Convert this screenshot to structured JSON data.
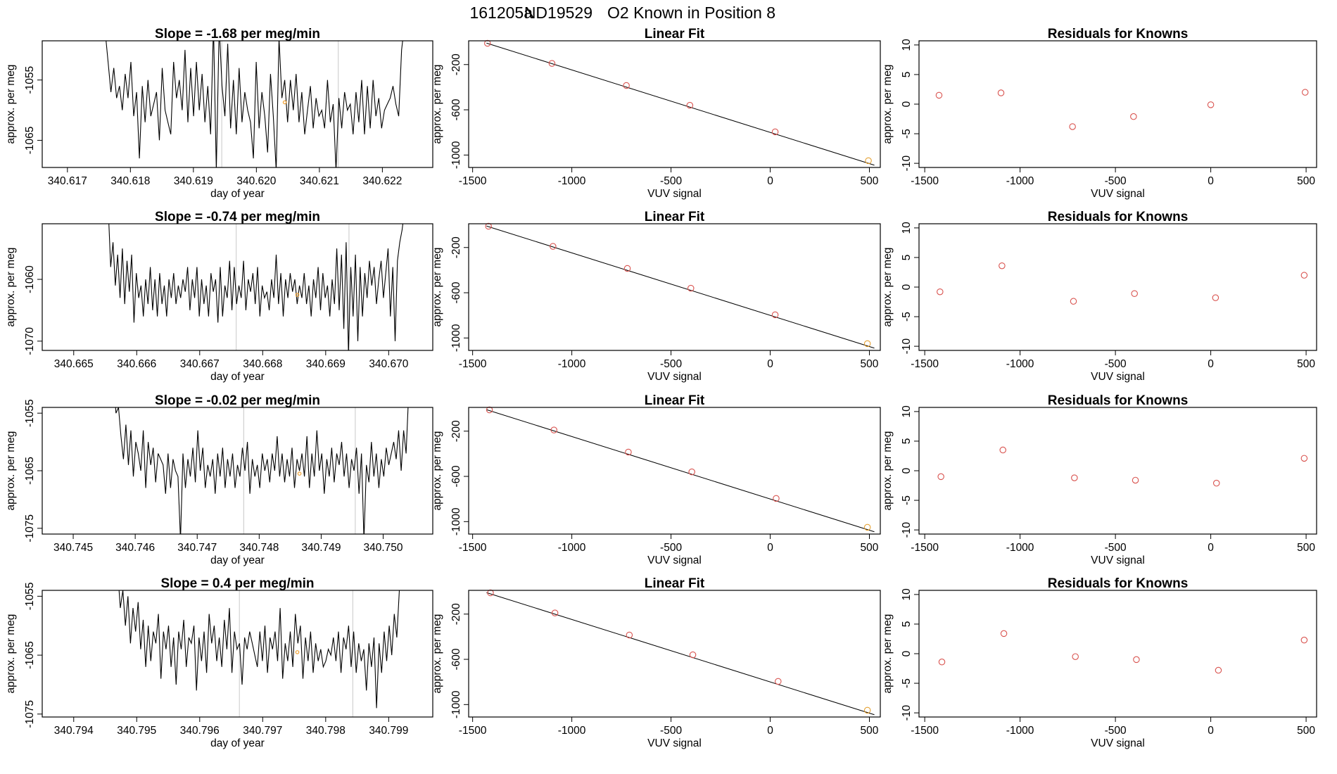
{
  "figure": {
    "title_parts": [
      "161205a",
      "ND19529",
      "O2 Known in Position  8"
    ]
  },
  "chart_data": [
    {
      "type": "line",
      "title": "Slope =  -1.68  per meg/min",
      "xlabel": "day of year",
      "ylabel": "approx. per meg",
      "xlim": [
        340.6166,
        340.6228
      ],
      "ylim": [
        -1069.5,
        -1048.5
      ],
      "xticks": [
        "340.617",
        "340.618",
        "340.619",
        "340.620",
        "340.621",
        "340.622"
      ],
      "yticks": [
        "-1055",
        "-1065"
      ],
      "vlines": [
        340.61945,
        340.6213
      ],
      "known_marker": [
        340.62045,
        -1058.7
      ],
      "series": [
        {
          "name": "trace",
          "x_start": 340.6176,
          "x_end": 340.62235,
          "values": [
            -1047,
            -1052,
            -1057,
            -1053,
            -1058,
            -1056,
            -1060,
            -1054,
            -1058,
            -1052,
            -1061,
            -1057,
            -1068,
            -1056,
            -1062,
            -1055,
            -1061,
            -1059,
            -1057,
            -1065,
            -1053,
            -1060,
            -1062,
            -1064,
            -1052,
            -1058,
            -1055,
            -1060,
            -1050,
            -1062,
            -1053,
            -1061,
            -1052,
            -1060,
            -1054,
            -1062,
            -1056,
            -1064,
            -1046,
            -1070,
            -1046,
            -1056,
            -1061,
            -1049,
            -1063,
            -1055,
            -1064,
            -1053,
            -1062,
            -1057,
            -1060,
            -1062,
            -1068,
            -1052,
            -1063,
            -1057,
            -1061,
            -1067,
            -1054,
            -1061,
            -1070,
            -1048,
            -1058,
            -1055,
            -1062,
            -1055,
            -1060,
            -1054,
            -1062,
            -1057,
            -1064,
            -1060,
            -1056,
            -1063,
            -1058,
            -1061,
            -1060,
            -1063,
            -1055,
            -1062,
            -1059,
            -1070,
            -1058,
            -1063,
            -1057,
            -1060,
            -1059,
            -1064,
            -1057,
            -1062,
            -1055,
            -1064,
            -1056,
            -1063,
            -1055,
            -1061,
            -1058,
            -1063,
            -1060,
            -1059,
            -1058,
            -1056,
            -1059,
            -1061,
            -1050,
            -1046
          ]
        }
      ]
    },
    {
      "type": "scatter",
      "title": "Linear Fit",
      "xlabel": "VUV signal",
      "ylabel": "approx. per meg",
      "xlim": [
        -1520,
        555
      ],
      "ylim": [
        -1110,
        10
      ],
      "xticks": [
        "-1500",
        "-1000",
        "-500",
        "0",
        "500"
      ],
      "yticks": [
        "-200",
        "-600",
        "-1000"
      ],
      "fit_line": [
        [
          -1430,
          -10
        ],
        [
          525,
          -1090
        ]
      ],
      "x": [
        -1425,
        -1100,
        -725,
        -405,
        25,
        495
      ],
      "y": [
        -12,
        -190,
        -385,
        -560,
        -795,
        -1050
      ],
      "highlight_index": 5
    },
    {
      "type": "scatter",
      "title": "Residuals for Knowns",
      "xlabel": "VUV signal",
      "ylabel": "approx. per meg",
      "xlim": [
        -1530,
        555
      ],
      "ylim": [
        -10.7,
        10.7
      ],
      "xticks": [
        "-1500",
        "-1000",
        "-500",
        "0",
        "500"
      ],
      "yticks": [
        "-10",
        "-5",
        "0",
        "5",
        "10"
      ],
      "x": [
        -1425,
        -1100,
        -725,
        -405,
        0,
        495
      ],
      "y": [
        1.5,
        1.9,
        -3.8,
        -2.1,
        -0.1,
        2.0
      ]
    },
    {
      "type": "line",
      "title": "Slope =  -0.74  per meg/min",
      "xlabel": "day of year",
      "ylabel": "approx. per meg",
      "xlim": [
        340.6645,
        340.6707
      ],
      "ylim": [
        -1071.5,
        -1051
      ],
      "xticks": [
        "340.665",
        "340.666",
        "340.667",
        "340.668",
        "340.669",
        "340.670"
      ],
      "yticks": [
        "-1060",
        "-1070"
      ],
      "vlines": [
        340.66758,
        340.66937
      ],
      "known_marker": [
        340.66855,
        -1062.5
      ],
      "series": [
        {
          "name": "trace",
          "x_start": 340.66555,
          "x_end": 340.67025,
          "values": [
            -1049,
            -1058,
            -1054,
            -1061,
            -1056,
            -1063,
            -1055,
            -1064,
            -1057,
            -1062,
            -1056,
            -1067,
            -1059,
            -1063,
            -1061,
            -1066,
            -1060,
            -1064,
            -1058,
            -1065,
            -1060,
            -1066,
            -1059,
            -1064,
            -1061,
            -1066,
            -1060,
            -1063,
            -1059,
            -1064,
            -1061,
            -1063,
            -1060,
            -1062,
            -1058,
            -1065,
            -1060,
            -1063,
            -1058,
            -1066,
            -1060,
            -1064,
            -1061,
            -1066,
            -1059,
            -1062,
            -1060,
            -1067,
            -1058,
            -1066,
            -1061,
            -1063,
            -1057,
            -1065,
            -1058,
            -1064,
            -1061,
            -1063,
            -1057,
            -1065,
            -1060,
            -1062,
            -1059,
            -1064,
            -1058,
            -1066,
            -1061,
            -1063,
            -1062,
            -1065,
            -1060,
            -1063,
            -1056,
            -1064,
            -1059,
            -1066,
            -1060,
            -1063,
            -1059,
            -1062,
            -1060,
            -1064,
            -1061,
            -1063,
            -1059,
            -1064,
            -1061,
            -1066,
            -1060,
            -1063,
            -1058,
            -1065,
            -1059,
            -1063,
            -1061,
            -1066,
            -1060,
            -1064,
            -1055,
            -1065,
            -1056,
            -1068,
            -1054,
            -1072,
            -1058,
            -1066,
            -1056,
            -1070,
            -1058,
            -1066,
            -1059,
            -1063,
            -1057,
            -1061,
            -1058,
            -1064,
            -1060,
            -1057,
            -1063,
            -1059,
            -1055,
            -1066,
            -1058,
            -1070,
            -1057,
            -1054,
            -1052,
            -1049
          ]
        }
      ]
    },
    {
      "type": "scatter",
      "title": "Linear Fit",
      "xlabel": "VUV signal",
      "ylabel": "approx. per meg",
      "xlim": [
        -1520,
        555
      ],
      "ylim": [
        -1110,
        10
      ],
      "xticks": [
        "-1500",
        "-1000",
        "-500",
        "0",
        "500"
      ],
      "yticks": [
        "-200",
        "-600",
        "-1000"
      ],
      "fit_line": [
        [
          -1430,
          -10
        ],
        [
          525,
          -1090
        ]
      ],
      "x": [
        -1420,
        -1095,
        -720,
        -400,
        25,
        490
      ],
      "y": [
        -12,
        -190,
        -385,
        -560,
        -795,
        -1050
      ],
      "highlight_index": 5
    },
    {
      "type": "scatter",
      "title": "Residuals for Knowns",
      "xlabel": "VUV signal",
      "ylabel": "approx. per meg",
      "xlim": [
        -1530,
        555
      ],
      "ylim": [
        -10.7,
        10.7
      ],
      "xticks": [
        "-1500",
        "-1000",
        "-500",
        "0",
        "500"
      ],
      "yticks": [
        "-10",
        "-5",
        "0",
        "5",
        "10"
      ],
      "x": [
        -1420,
        -1095,
        -720,
        -400,
        25,
        490
      ],
      "y": [
        -0.8,
        3.6,
        -2.4,
        -1.1,
        -1.8,
        2.0
      ]
    },
    {
      "type": "line",
      "title": "Slope =  -0.02  per meg/min",
      "xlabel": "day of year",
      "ylabel": "approx. per meg",
      "xlim": [
        340.7445,
        340.7508
      ],
      "ylim": [
        -1076,
        -1054
      ],
      "xticks": [
        "340.745",
        "340.746",
        "340.747",
        "340.748",
        "340.749",
        "340.750"
      ],
      "yticks": [
        "-1055",
        "-1065",
        "-1075"
      ],
      "vlines": [
        340.74775,
        340.74955
      ],
      "known_marker": [
        340.74865,
        -1065.5
      ],
      "series": [
        {
          "name": "trace",
          "x_start": 340.74565,
          "x_end": 340.75045,
          "values": [
            -1049,
            -1055,
            -1054,
            -1059,
            -1063,
            -1057,
            -1064,
            -1058,
            -1066,
            -1060,
            -1062,
            -1065,
            -1058,
            -1068,
            -1060,
            -1064,
            -1061,
            -1067,
            -1062,
            -1063,
            -1064,
            -1069,
            -1062,
            -1068,
            -1063,
            -1065,
            -1066,
            -1077,
            -1062,
            -1068,
            -1063,
            -1066,
            -1061,
            -1067,
            -1058,
            -1065,
            -1061,
            -1068,
            -1064,
            -1066,
            -1063,
            -1069,
            -1062,
            -1066,
            -1061,
            -1068,
            -1063,
            -1066,
            -1062,
            -1068,
            -1064,
            -1066,
            -1061,
            -1065,
            -1060,
            -1069,
            -1063,
            -1066,
            -1064,
            -1068,
            -1062,
            -1065,
            -1063,
            -1067,
            -1062,
            -1065,
            -1059,
            -1066,
            -1062,
            -1067,
            -1063,
            -1066,
            -1061,
            -1068,
            -1063,
            -1065,
            -1062,
            -1066,
            -1059,
            -1068,
            -1062,
            -1066,
            -1058,
            -1065,
            -1062,
            -1069,
            -1063,
            -1066,
            -1061,
            -1067,
            -1062,
            -1064,
            -1060,
            -1066,
            -1062,
            -1068,
            -1063,
            -1065,
            -1061,
            -1069,
            -1062,
            -1077,
            -1064,
            -1067,
            -1060,
            -1066,
            -1062,
            -1068,
            -1063,
            -1066,
            -1061,
            -1064,
            -1062,
            -1060,
            -1063,
            -1058,
            -1065,
            -1058,
            -1062,
            -1052,
            -1049
          ]
        }
      ]
    },
    {
      "type": "scatter",
      "title": "Linear Fit",
      "xlabel": "VUV signal",
      "ylabel": "approx. per meg",
      "xlim": [
        -1520,
        555
      ],
      "ylim": [
        -1110,
        10
      ],
      "xticks": [
        "-1500",
        "-1000",
        "-500",
        "0",
        "500"
      ],
      "yticks": [
        "-200",
        "-600",
        "-1000"
      ],
      "fit_line": [
        [
          -1430,
          -10
        ],
        [
          525,
          -1090
        ]
      ],
      "x": [
        -1415,
        -1090,
        -715,
        -395,
        30,
        490
      ],
      "y": [
        -12,
        -190,
        -385,
        -560,
        -795,
        -1050
      ],
      "highlight_index": 5
    },
    {
      "type": "scatter",
      "title": "Residuals for Knowns",
      "xlabel": "VUV signal",
      "ylabel": "approx. per meg",
      "xlim": [
        -1530,
        555
      ],
      "ylim": [
        -10.7,
        10.7
      ],
      "xticks": [
        "-1500",
        "-1000",
        "-500",
        "0",
        "500"
      ],
      "yticks": [
        "-10",
        "-5",
        "0",
        "5",
        "10"
      ],
      "x": [
        -1415,
        -1090,
        -715,
        -395,
        30,
        490
      ],
      "y": [
        -1.0,
        3.5,
        -1.2,
        -1.6,
        -2.1,
        2.1
      ]
    },
    {
      "type": "line",
      "title": "Slope =  0.4  per meg/min",
      "xlabel": "day of year",
      "ylabel": "approx. per meg",
      "xlim": [
        340.7935,
        340.7997
      ],
      "ylim": [
        -1075.5,
        -1054
      ],
      "xticks": [
        "340.794",
        "340.795",
        "340.796",
        "340.797",
        "340.798",
        "340.799"
      ],
      "yticks": [
        "-1055",
        "-1065",
        "-1075"
      ],
      "vlines": [
        340.79663,
        340.79843
      ],
      "known_marker": [
        340.79755,
        -1064.5
      ],
      "series": [
        {
          "name": "trace",
          "x_start": 340.7947,
          "x_end": 340.79925,
          "values": [
            -1051,
            -1057,
            -1054,
            -1060,
            -1055,
            -1063,
            -1057,
            -1061,
            -1056,
            -1064,
            -1059,
            -1067,
            -1060,
            -1066,
            -1061,
            -1063,
            -1058,
            -1069,
            -1061,
            -1064,
            -1060,
            -1067,
            -1062,
            -1070,
            -1061,
            -1064,
            -1059,
            -1067,
            -1062,
            -1063,
            -1060,
            -1071,
            -1062,
            -1066,
            -1061,
            -1068,
            -1058,
            -1063,
            -1060,
            -1066,
            -1062,
            -1067,
            -1059,
            -1064,
            -1057,
            -1068,
            -1061,
            -1064,
            -1063,
            -1070,
            -1062,
            -1064,
            -1061,
            -1063,
            -1065,
            -1067,
            -1061,
            -1066,
            -1060,
            -1068,
            -1062,
            -1064,
            -1061,
            -1066,
            -1057,
            -1069,
            -1063,
            -1066,
            -1061,
            -1067,
            -1058,
            -1063,
            -1060,
            -1069,
            -1062,
            -1066,
            -1061,
            -1068,
            -1063,
            -1066,
            -1064,
            -1067,
            -1066,
            -1064,
            -1065,
            -1062,
            -1066,
            -1061,
            -1068,
            -1062,
            -1064,
            -1060,
            -1067,
            -1061,
            -1068,
            -1063,
            -1066,
            -1064,
            -1071,
            -1063,
            -1067,
            -1062,
            -1074,
            -1063,
            -1068,
            -1061,
            -1066,
            -1060,
            -1065,
            -1058,
            -1062,
            -1054,
            -1052,
            -1049
          ]
        }
      ]
    },
    {
      "type": "scatter",
      "title": "Linear Fit",
      "xlabel": "VUV signal",
      "ylabel": "approx. per meg",
      "xlim": [
        -1520,
        555
      ],
      "ylim": [
        -1110,
        10
      ],
      "xticks": [
        "-1500",
        "-1000",
        "-500",
        "0",
        "500"
      ],
      "yticks": [
        "-200",
        "-600",
        "-1000"
      ],
      "fit_line": [
        [
          -1430,
          -10
        ],
        [
          525,
          -1090
        ]
      ],
      "x": [
        -1410,
        -1085,
        -710,
        -390,
        40,
        490
      ],
      "y": [
        -12,
        -190,
        -385,
        -560,
        -795,
        -1050
      ],
      "highlight_index": 5
    },
    {
      "type": "scatter",
      "title": "Residuals for Knowns",
      "xlabel": "VUV signal",
      "ylabel": "approx. per meg",
      "xlim": [
        -1530,
        555
      ],
      "ylim": [
        -10.7,
        10.7
      ],
      "xticks": [
        "-1500",
        "-1000",
        "-500",
        "0",
        "500"
      ],
      "yticks": [
        "-10",
        "-5",
        "0",
        "5",
        "10"
      ],
      "x": [
        -1410,
        -1085,
        -710,
        -390,
        40,
        490
      ],
      "y": [
        -1.4,
        3.4,
        -0.5,
        -1.0,
        -2.8,
        2.3
      ]
    }
  ]
}
